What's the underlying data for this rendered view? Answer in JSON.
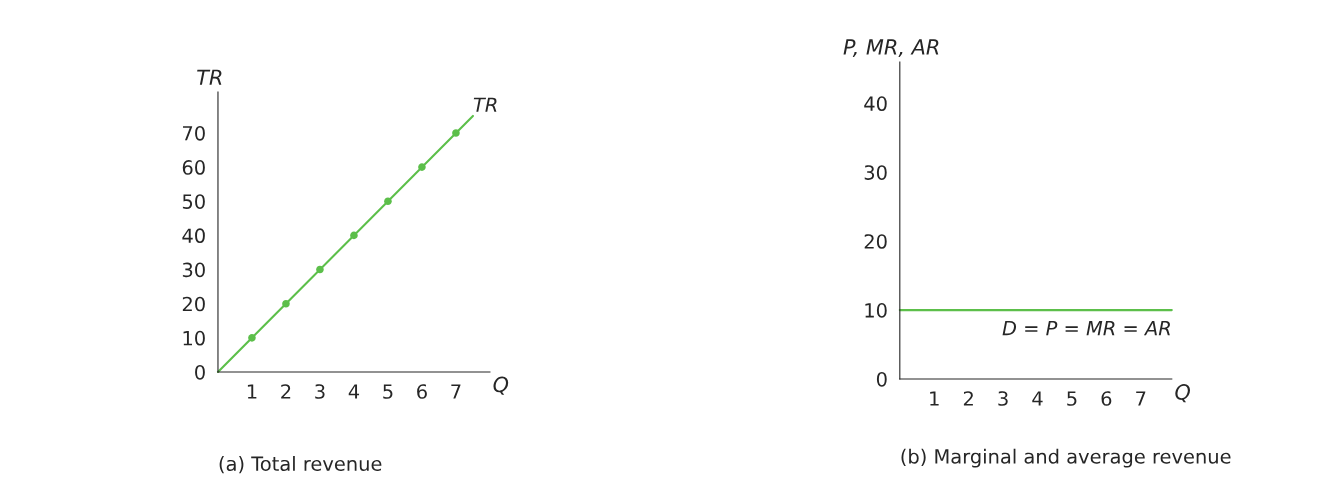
{
  "chart_data": [
    {
      "type": "line",
      "title": "(a) Total revenue",
      "xlabel": "Q",
      "ylabel": "TR",
      "xlim": [
        0,
        8
      ],
      "ylim": [
        0,
        82
      ],
      "xticks": [
        1,
        2,
        3,
        4,
        5,
        6,
        7
      ],
      "yticks": [
        0,
        10,
        20,
        30,
        40,
        50,
        60,
        70
      ],
      "grid": false,
      "legend": false,
      "series": [
        {
          "name": "TR",
          "color": "#5cbf4a",
          "x": [
            0,
            7.5
          ],
          "values": [
            0,
            75
          ],
          "marker": "none"
        },
        {
          "type": "scatter",
          "color": "#5cbf4a",
          "x": [
            1,
            2,
            3,
            4,
            5,
            6,
            7
          ],
          "values": [
            10,
            20,
            30,
            40,
            50,
            60,
            70
          ],
          "marker": "circle"
        }
      ]
    },
    {
      "type": "line",
      "title": "(b) Marginal and average revenue",
      "xlabel": "Q",
      "ylabel": "P, MR, AR",
      "xlim": [
        0,
        7.9
      ],
      "ylim": [
        0,
        46
      ],
      "xticks": [
        1,
        2,
        3,
        4,
        5,
        6,
        7
      ],
      "yticks": [
        0,
        10,
        20,
        30,
        40
      ],
      "grid": false,
      "legend": false,
      "series": [
        {
          "name": "D = P = MR = AR",
          "color": "#5cbf4a",
          "x": [
            0,
            7.9
          ],
          "values": [
            10,
            10
          ],
          "marker": "none"
        }
      ]
    }
  ]
}
